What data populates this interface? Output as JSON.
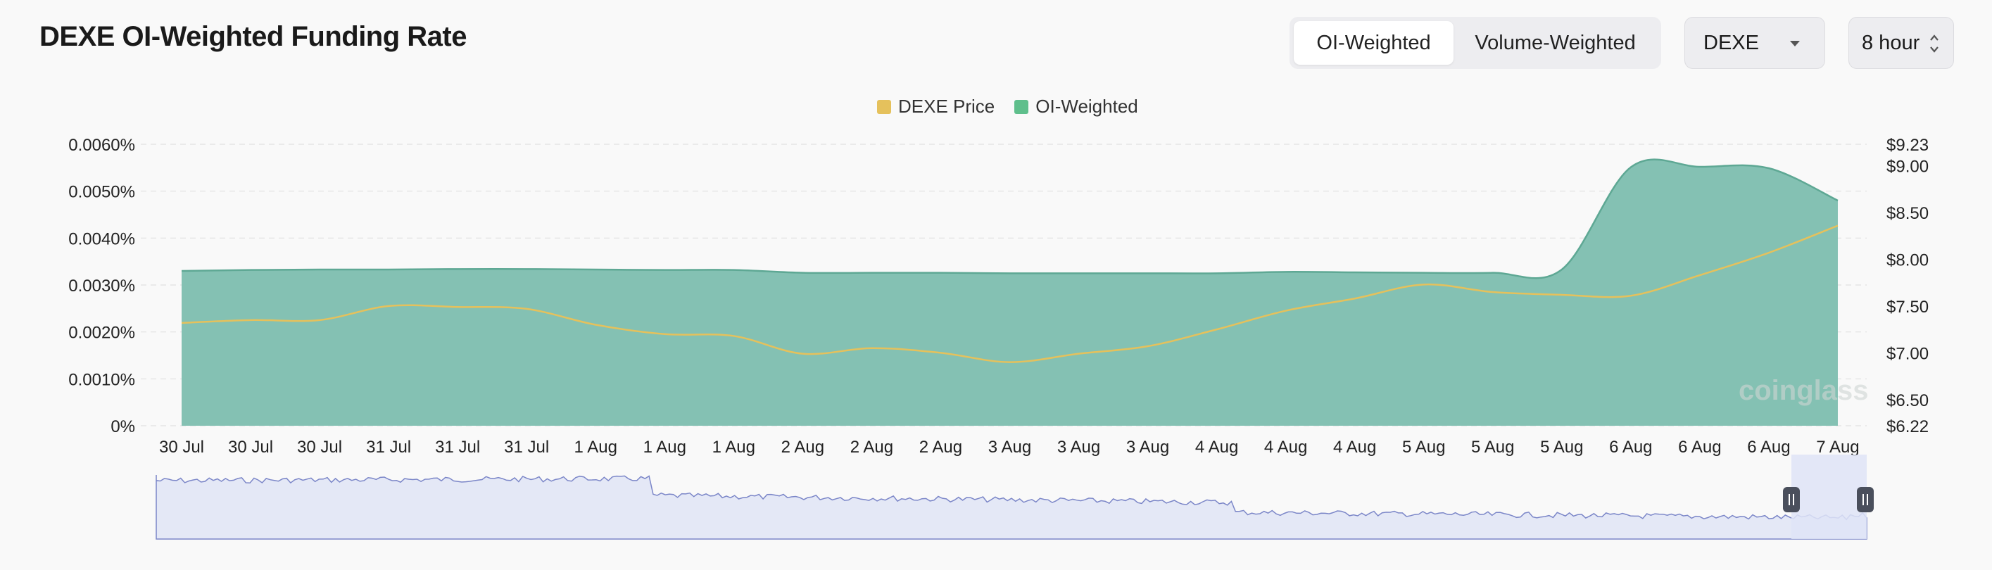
{
  "header": {
    "title": "DEXE OI-Weighted Funding Rate"
  },
  "controls": {
    "weighting_tabs": [
      {
        "label": "OI-Weighted",
        "active": true
      },
      {
        "label": "Volume-Weighted",
        "active": false
      }
    ],
    "symbol_select": "DEXE",
    "interval_select": "8 hour"
  },
  "legend": [
    {
      "label": "DEXE Price",
      "color": "#e5c15c"
    },
    {
      "label": "OI-Weighted",
      "color": "#5fbf8c"
    }
  ],
  "colors": {
    "area_fill": "#84c1b3",
    "area_line": "#5ea894",
    "price_line": "#e5c15c",
    "navigator_fill": "#e4e8f6",
    "navigator_line": "#7b86c8"
  },
  "watermark": "coinglass",
  "chart_data": {
    "type": "area",
    "x": [
      "30 Jul",
      "30 Jul",
      "30 Jul",
      "31 Jul",
      "31 Jul",
      "31 Jul",
      "1 Aug",
      "1 Aug",
      "1 Aug",
      "2 Aug",
      "2 Aug",
      "2 Aug",
      "3 Aug",
      "3 Aug",
      "3 Aug",
      "4 Aug",
      "4 Aug",
      "4 Aug",
      "5 Aug",
      "5 Aug",
      "5 Aug",
      "6 Aug",
      "6 Aug",
      "6 Aug",
      "7 Aug"
    ],
    "series": [
      {
        "name": "OI-Weighted",
        "axis": "left",
        "unit": "%",
        "values": [
          0.0033,
          0.00332,
          0.00333,
          0.00333,
          0.00334,
          0.00334,
          0.00333,
          0.00332,
          0.00332,
          0.00326,
          0.00326,
          0.00326,
          0.00325,
          0.00325,
          0.00325,
          0.00325,
          0.00328,
          0.00327,
          0.00326,
          0.00326,
          0.00333,
          0.00551,
          0.00552,
          0.00549,
          0.0048
        ]
      },
      {
        "name": "DEXE Price",
        "axis": "right",
        "unit": "$",
        "values": [
          7.32,
          7.35,
          7.35,
          7.5,
          7.49,
          7.47,
          7.3,
          7.2,
          7.18,
          6.99,
          7.05,
          7.0,
          6.9,
          6.99,
          7.07,
          7.25,
          7.45,
          7.58,
          7.73,
          7.65,
          7.62,
          7.61,
          7.83,
          8.07,
          8.36
        ]
      }
    ],
    "y_left": {
      "ticks": [
        "0%",
        "0.0010%",
        "0.0020%",
        "0.0030%",
        "0.0040%",
        "0.0050%",
        "0.0060%"
      ],
      "range": [
        0,
        0.006
      ]
    },
    "y_right": {
      "ticks": [
        "$6.22",
        "$6.50",
        "$7.00",
        "$7.50",
        "$8.00",
        "$8.50",
        "$9.00",
        "$9.23"
      ],
      "range": [
        6.22,
        9.23
      ]
    },
    "grid": true,
    "legend_position": "top-center"
  }
}
